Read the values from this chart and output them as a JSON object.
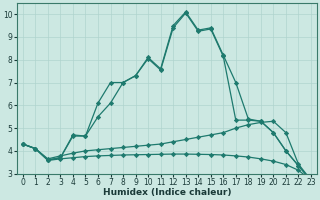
{
  "xlabel": "Humidex (Indice chaleur)",
  "background_color": "#cce8e2",
  "grid_color": "#b0d4ce",
  "line_color": "#1e7a6e",
  "x_values": [
    0,
    1,
    2,
    3,
    4,
    5,
    6,
    7,
    8,
    9,
    10,
    11,
    12,
    13,
    14,
    15,
    16,
    17,
    18,
    19,
    20,
    21,
    22,
    23
  ],
  "line1_y": [
    4.3,
    4.1,
    3.6,
    3.7,
    4.7,
    4.65,
    6.1,
    7.0,
    7.0,
    7.3,
    8.1,
    7.6,
    9.5,
    10.1,
    9.3,
    9.4,
    8.2,
    7.0,
    5.4,
    5.3,
    4.8,
    4.0,
    3.35,
    2.7
  ],
  "line2_y": [
    4.3,
    4.1,
    3.6,
    3.7,
    4.65,
    4.65,
    5.5,
    6.1,
    7.0,
    7.3,
    8.05,
    7.55,
    9.4,
    10.05,
    9.25,
    9.35,
    8.15,
    5.35,
    5.35,
    5.3,
    4.8,
    4.0,
    3.35,
    2.7
  ],
  "line3_y": [
    4.3,
    4.1,
    3.65,
    3.78,
    3.9,
    4.0,
    4.05,
    4.1,
    4.15,
    4.2,
    4.25,
    4.3,
    4.4,
    4.5,
    4.6,
    4.7,
    4.8,
    5.0,
    5.15,
    5.25,
    5.3,
    4.8,
    3.42,
    2.72
  ],
  "line4_y": [
    4.3,
    4.1,
    3.58,
    3.65,
    3.7,
    3.75,
    3.78,
    3.8,
    3.82,
    3.83,
    3.84,
    3.85,
    3.86,
    3.86,
    3.85,
    3.84,
    3.82,
    3.78,
    3.73,
    3.65,
    3.55,
    3.4,
    3.15,
    2.72
  ],
  "ylim": [
    3.0,
    10.5
  ],
  "yticks": [
    3,
    4,
    5,
    6,
    7,
    8,
    9,
    10
  ],
  "xlim": [
    -0.5,
    23.5
  ],
  "xticks": [
    0,
    1,
    2,
    3,
    4,
    5,
    6,
    7,
    8,
    9,
    10,
    11,
    12,
    13,
    14,
    15,
    16,
    17,
    18,
    19,
    20,
    21,
    22,
    23
  ]
}
